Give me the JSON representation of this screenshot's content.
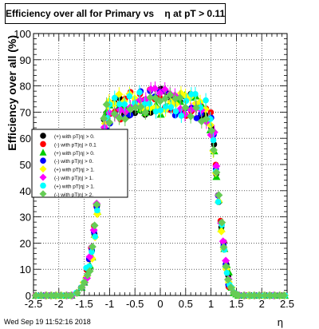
{
  "chart_data": {
    "type": "scatter",
    "title": "Efficiency over all for Primary vs    η at pT > 0.11",
    "xlabel": "η",
    "ylabel": "Efficiency over all (%)",
    "xlim": [
      -2.5,
      2.5
    ],
    "ylim": [
      0,
      100
    ],
    "x_ticks": [
      "-2.5",
      "-2",
      "-1.5",
      "-1",
      "-0.5",
      "0",
      "0.5",
      "1",
      "1.5",
      "2",
      "2.5"
    ],
    "y_ticks": [
      "0",
      "10",
      "20",
      "30",
      "40",
      "50",
      "60",
      "70",
      "80",
      "90",
      "100"
    ],
    "grid": true,
    "legend_placement": "left-middle",
    "series": [
      {
        "name": "(+) with pT|η| > 0.",
        "color": "#000000",
        "marker": "circle"
      },
      {
        "name": "(-) with pT|η| > 0.1",
        "color": "#ff0000",
        "marker": "circle"
      },
      {
        "name": "(+) with pT|η| > 0.",
        "color": "#00cc00",
        "marker": "triangle"
      },
      {
        "name": "(-) with pT|η| > 0.",
        "color": "#0000ff",
        "marker": "circle"
      },
      {
        "name": "(+) with pT|η| > 1.",
        "color": "#ffff00",
        "marker": "diamond"
      },
      {
        "name": "(-) with pT|η| > 1.",
        "color": "#ff00ff",
        "marker": "diamond"
      },
      {
        "name": "(+) with pT|η| > 1.",
        "color": "#00ffff",
        "marker": "circle"
      },
      {
        "name": "(-) with pT|η| > 2.",
        "color": "#66cc55",
        "marker": "diamond"
      }
    ],
    "profile": {
      "x": [
        -2.45,
        -2.35,
        -2.25,
        -2.15,
        -2.05,
        -1.95,
        -1.85,
        -1.75,
        -1.65,
        -1.55,
        -1.5,
        -1.45,
        -1.4,
        -1.35,
        -1.3,
        -1.25,
        -1.2,
        -1.15,
        -1.1,
        -1.05,
        -1.0,
        -0.9,
        -0.8,
        -0.7,
        -0.6,
        -0.5,
        -0.4,
        -0.3,
        -0.2,
        -0.1,
        0.0,
        0.1,
        0.2,
        0.3,
        0.4,
        0.5,
        0.6,
        0.7,
        0.8,
        0.9,
        1.0,
        1.05,
        1.1,
        1.15,
        1.2,
        1.25,
        1.3,
        1.35,
        1.4,
        1.45,
        1.5,
        1.55,
        1.65,
        1.75,
        1.85,
        1.95,
        2.05,
        2.15,
        2.25,
        2.35,
        2.45
      ],
      "y": [
        0,
        0,
        0,
        0,
        0,
        0,
        0,
        0,
        1,
        3,
        5,
        8,
        12,
        17,
        24,
        33,
        45,
        57,
        64,
        68,
        70,
        71,
        72,
        72,
        73,
        73,
        73,
        74,
        74,
        74,
        74,
        74,
        74,
        73,
        73,
        73,
        72,
        72,
        71,
        70,
        66,
        58,
        48,
        38,
        27,
        18,
        11,
        6,
        3,
        1,
        0.5,
        0,
        0,
        0,
        0,
        0,
        0,
        0,
        0,
        0,
        0
      ]
    }
  },
  "timestamp": "Wed Sep 19 11:52:16 2018"
}
